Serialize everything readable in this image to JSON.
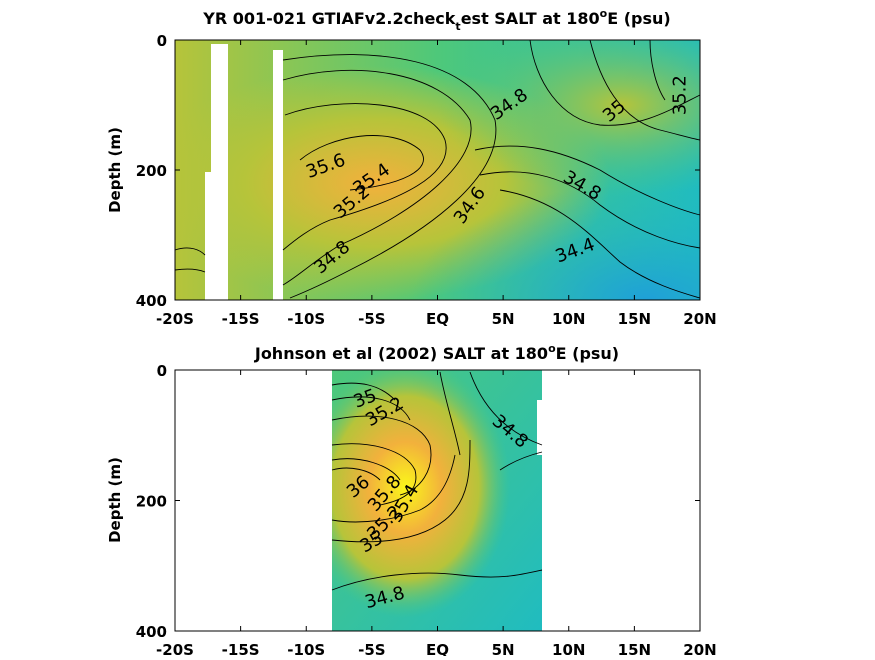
{
  "colors": {
    "low": "#1fa0d8",
    "mid_low": "#20bcc0",
    "mid": "#4ec87a",
    "mid_high": "#b6c43a",
    "high": "#f2b13c",
    "max": "#fbf71a"
  },
  "chart_data": [
    {
      "type": "heatmap",
      "title_main": "YR 001-021 GTIAFv2.2check",
      "title_sub": "t",
      "title_rest": "est SALT at 180",
      "title_sup": "o",
      "title_end": "E (psu)",
      "ylabel": "Depth (m)",
      "x_ticks": [
        "-20S",
        "-15S",
        "-10S",
        "-5S",
        "EQ",
        "5N",
        "10N",
        "15N",
        "20N"
      ],
      "y_ticks": [
        "0",
        "200",
        "400"
      ],
      "xlim": [
        -20,
        20
      ],
      "ylim": [
        0,
        400
      ],
      "contour_labels": [
        {
          "text": "35.6",
          "lat": -8.5,
          "depth": 195,
          "angle": -20
        },
        {
          "text": "35.4",
          "lat": -5.0,
          "depth": 215,
          "angle": -35
        },
        {
          "text": "35.2",
          "lat": -6.5,
          "depth": 250,
          "angle": -40
        },
        {
          "text": "34.8",
          "lat": -8.0,
          "depth": 335,
          "angle": -40
        },
        {
          "text": "34.6",
          "lat": 2.5,
          "depth": 255,
          "angle": -55
        },
        {
          "text": "34.8",
          "lat": 5.5,
          "depth": 100,
          "angle": -35
        },
        {
          "text": "35",
          "lat": 13.5,
          "depth": 110,
          "angle": -40
        },
        {
          "text": "35.2",
          "lat": 18.5,
          "depth": 85,
          "angle": -90
        },
        {
          "text": "34.8",
          "lat": 11.0,
          "depth": 225,
          "angle": 30
        },
        {
          "text": "34.4",
          "lat": 10.5,
          "depth": 325,
          "angle": -20
        }
      ]
    },
    {
      "type": "heatmap",
      "title_main": "Johnson et al (2002) SALT at 180",
      "title_sup": "o",
      "title_end": "E (psu)",
      "ylabel": "Depth (m)",
      "x_ticks": [
        "-20S",
        "-15S",
        "-10S",
        "-5S",
        "EQ",
        "5N",
        "10N",
        "15N",
        "20N"
      ],
      "y_ticks": [
        "0",
        "200",
        "400"
      ],
      "xlim": [
        -20,
        20
      ],
      "ylim": [
        0,
        400
      ],
      "data_lat_range": [
        -8,
        8
      ],
      "contour_labels": [
        {
          "text": "35",
          "lat": -5.5,
          "depth": 45,
          "angle": -20
        },
        {
          "text": "35.2",
          "lat": -4.0,
          "depth": 65,
          "angle": -30
        },
        {
          "text": "34.8",
          "lat": 5.5,
          "depth": 95,
          "angle": 40
        },
        {
          "text": "36",
          "lat": -6.0,
          "depth": 180,
          "angle": -40
        },
        {
          "text": "35.8",
          "lat": -4.0,
          "depth": 190,
          "angle": -50
        },
        {
          "text": "35.4",
          "lat": -2.5,
          "depth": 205,
          "angle": -60
        },
        {
          "text": "35.2",
          "lat": -4.0,
          "depth": 235,
          "angle": -45
        },
        {
          "text": "35",
          "lat": -5.0,
          "depth": 265,
          "angle": -30
        },
        {
          "text": "34.8",
          "lat": -4.0,
          "depth": 350,
          "angle": -15
        }
      ]
    }
  ]
}
